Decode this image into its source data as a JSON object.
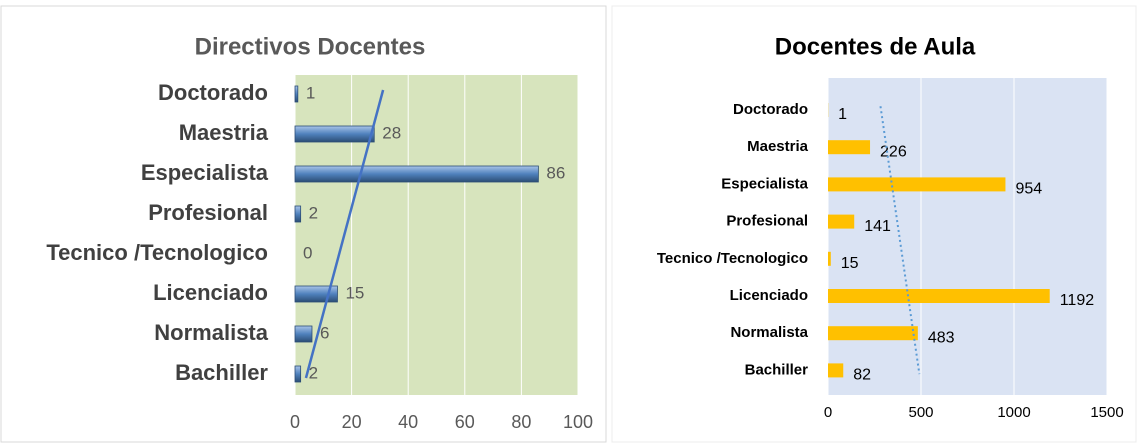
{
  "chart_data": [
    {
      "type": "bar",
      "title": "Directivos Docentes",
      "categories": [
        "Doctorado",
        "Maestria",
        "Especialista",
        "Profesional",
        "Tecnico /Tecnologico",
        "Licenciado",
        "Normalista",
        "Bachiller"
      ],
      "values": [
        1,
        28,
        86,
        2,
        0,
        15,
        6,
        2
      ],
      "color": "#4f81bd",
      "plot_background": "#d7e4bd",
      "xlim": [
        0,
        100
      ],
      "xticks": [
        0,
        20,
        40,
        60,
        80,
        100
      ],
      "trendline": true,
      "trendline_color": "#4472c4",
      "trendline_style": "solid"
    },
    {
      "type": "bar",
      "title": "Docentes de Aula",
      "categories": [
        "Doctorado",
        "Maestria",
        "Especialista",
        "Profesional",
        "Tecnico /Tecnologico",
        "Licenciado",
        "Normalista",
        "Bachiller"
      ],
      "values": [
        1,
        226,
        954,
        141,
        15,
        1192,
        483,
        82
      ],
      "color": "#ffc000",
      "plot_background": "#dae3f3",
      "xlim": [
        0,
        1500
      ],
      "xticks": [
        0,
        500,
        1000,
        1500
      ],
      "trendline": true,
      "trendline_color": "#5b9bd5",
      "trendline_style": "dotted"
    }
  ]
}
